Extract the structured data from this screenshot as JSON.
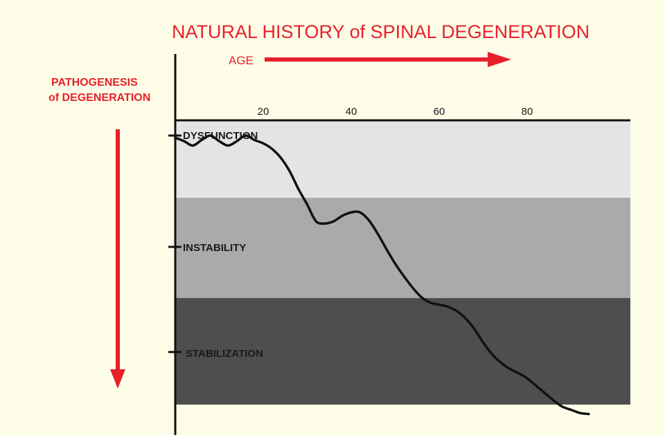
{
  "chart_data": {
    "type": "line",
    "title": "NATURAL HISTORY of SPINAL DEGENERATION",
    "xlabel": "AGE",
    "ylabel_line1": "PATHOGENESIS",
    "ylabel_line2": "of DEGENERATION",
    "x_ticks": [
      20,
      40,
      60,
      80
    ],
    "x_tick_labels": [
      "20",
      "40",
      "60",
      "80"
    ],
    "xlim": [
      0,
      104
    ],
    "zones": [
      {
        "label": "DYSFUNCTION",
        "color": "#e4e4e4"
      },
      {
        "label": "INSTABILITY",
        "color": "#aaaaaa"
      },
      {
        "label": "STABILIZATION",
        "color": "#4e4e4e"
      }
    ],
    "accent_color": "#e8202a",
    "series": [
      {
        "x": [
          0,
          2,
          4,
          6,
          8,
          10,
          12,
          14,
          16,
          18,
          20,
          22,
          24,
          26,
          28,
          30,
          32,
          34,
          36,
          38,
          40,
          42,
          44,
          46,
          48,
          50,
          52,
          54,
          56,
          58,
          60,
          62,
          64,
          66,
          68,
          70,
          72,
          74,
          76,
          78,
          80,
          82,
          84,
          86,
          88,
          90,
          92,
          94
        ],
        "y": [
          0.02,
          0.05,
          0.09,
          0.04,
          0.0,
          0.05,
          0.09,
          0.05,
          0.0,
          0.04,
          0.07,
          0.12,
          0.2,
          0.32,
          0.48,
          0.62,
          0.77,
          0.79,
          0.77,
          0.72,
          0.69,
          0.69,
          0.76,
          0.88,
          1.02,
          1.16,
          1.28,
          1.39,
          1.48,
          1.53,
          1.55,
          1.57,
          1.61,
          1.68,
          1.78,
          1.91,
          2.02,
          2.1,
          2.16,
          2.2,
          2.25,
          2.32,
          2.39,
          2.46,
          2.52,
          2.55,
          2.58,
          2.59
        ]
      }
    ]
  }
}
